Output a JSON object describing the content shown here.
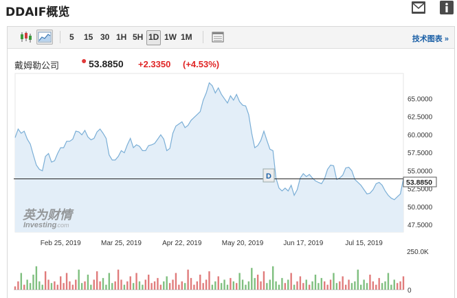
{
  "page": {
    "title": "DDAIF概览"
  },
  "icons": {
    "mail": "mail-icon",
    "info": "info-icon"
  },
  "toolbar": {
    "chart_type_buttons": [
      {
        "name": "candlestick-icon",
        "active": false
      },
      {
        "name": "area-chart-icon",
        "active": true
      }
    ],
    "intervals": [
      {
        "label": "5",
        "active": false
      },
      {
        "label": "15",
        "active": false
      },
      {
        "label": "30",
        "active": false
      },
      {
        "label": "1H",
        "active": false
      },
      {
        "label": "5H",
        "active": false
      },
      {
        "label": "1D",
        "active": true
      },
      {
        "label": "1W",
        "active": false
      },
      {
        "label": "1M",
        "active": false
      }
    ],
    "table_icon": "table-icon",
    "tech_chart_link": "技术图表 »"
  },
  "quote": {
    "name": "戴姆勒公司",
    "price": "53.8850",
    "change": "+2.3350",
    "change_pct": "(+4.53%)",
    "up_color": "#e02424"
  },
  "watermark": {
    "line1": "英为财情",
    "line2": "Investing",
    "line3": ".com"
  },
  "marker": {
    "label": "D"
  },
  "chart_data": {
    "type": "area",
    "ylim": [
      46.5,
      68.5
    ],
    "y_ticks": [
      "65.0000",
      "62.5000",
      "60.0000",
      "57.5000",
      "55.0000",
      "52.5000",
      "50.0000",
      "47.5000"
    ],
    "y_tick_values": [
      65,
      62.5,
      60,
      57.5,
      55,
      52.5,
      50,
      47.5
    ],
    "x_ticks": [
      "Feb 25, 2019",
      "Mar 25, 2019",
      "Apr 22, 2019",
      "May 20, 2019",
      "Jun 17, 2019",
      "Jul 15, 2019"
    ],
    "x_tick_index": [
      15,
      35,
      55,
      75,
      95,
      115
    ],
    "current_price": 53.885,
    "current_price_label": "53.8850",
    "line_color": "#7aaed6",
    "fill_color": "#e3eef8",
    "series": [
      {
        "values": [
          59.6,
          60.8,
          60.2,
          60.5,
          59.4,
          58.7,
          57.2,
          55.8,
          55.2,
          55.0,
          57.0,
          57.4,
          56.2,
          56.4,
          57.4,
          58.2,
          58.2,
          59.1,
          59.1,
          59.4,
          60.5,
          60.4,
          60.0,
          60.6,
          59.7,
          59.3,
          59.5,
          60.4,
          60.8,
          60.2,
          59.5,
          57.2,
          56.5,
          56.5,
          57.0,
          57.8,
          57.5,
          58.6,
          59.5,
          58.2,
          58.6,
          58.4,
          57.8,
          57.8,
          58.5,
          58.6,
          58.8,
          59.4,
          60.0,
          59.4,
          57.8,
          58.1,
          60.2,
          61.2,
          61.5,
          61.8,
          61.0,
          61.3,
          62.0,
          62.4,
          62.8,
          63.2,
          64.8,
          65.8,
          67.2,
          66.8,
          65.8,
          66.5,
          65.6,
          65.0,
          64.4,
          65.4,
          64.8,
          65.6,
          64.6,
          64.1,
          64.0,
          62.8,
          60.2,
          58.2,
          58.5,
          59.2,
          60.5,
          59.2,
          58.0,
          57.8,
          54.0,
          52.6,
          52.2,
          52.6,
          52.2,
          53.0,
          51.6,
          52.4,
          54.0,
          54.6,
          54.2,
          54.5,
          54.0,
          53.6,
          53.4,
          53.2,
          53.9,
          55.2,
          55.8,
          55.7,
          53.8,
          54.0,
          54.4,
          55.4,
          55.5,
          55.0,
          53.8,
          53.4,
          53.0,
          52.4,
          51.8,
          51.9,
          52.4,
          53.2,
          53.4,
          53.0,
          52.2,
          51.6,
          51.2,
          51.0,
          51.4,
          51.8,
          53.885
        ],
        "volumes": [
          2,
          5,
          10,
          3,
          6,
          4,
          9,
          14,
          5,
          3,
          11,
          6,
          4,
          5,
          3,
          8,
          4,
          10,
          5,
          3,
          6,
          12,
          4,
          5,
          9,
          3,
          6,
          11,
          5,
          7,
          3,
          10,
          4,
          5,
          12,
          6,
          3,
          5,
          8,
          4,
          10,
          5,
          3,
          6,
          9,
          4,
          5,
          7,
          3,
          5,
          8,
          4,
          6,
          10,
          3,
          5,
          4,
          12,
          7,
          3,
          5,
          9,
          4,
          6,
          11,
          3,
          5,
          8,
          4,
          6,
          3,
          7,
          5,
          4,
          10,
          6,
          3,
          5,
          13,
          7,
          9,
          5,
          11,
          4,
          6,
          14,
          5,
          3,
          7,
          4,
          6,
          10,
          3,
          5,
          8,
          4,
          6,
          3,
          5,
          9,
          4,
          7,
          5,
          3,
          6,
          10,
          4,
          5,
          8,
          3,
          6,
          4,
          5,
          12,
          3,
          6,
          4,
          9,
          5,
          3,
          7,
          4,
          5,
          10,
          3,
          6,
          4,
          5,
          8
        ]
      }
    ],
    "volume_axis_label": "250.0K",
    "volume_zero_label": "0",
    "volume_max": 18
  }
}
